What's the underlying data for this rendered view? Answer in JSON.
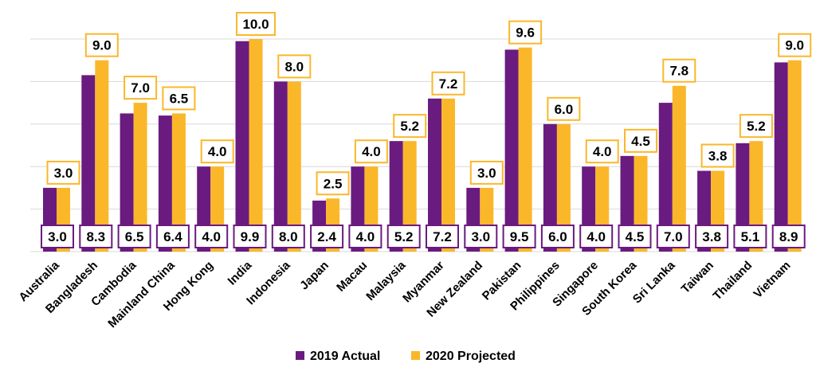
{
  "chart_data": {
    "type": "bar",
    "title": "",
    "xlabel": "",
    "ylabel": "",
    "ylim": [
      0,
      10.5
    ],
    "grid": true,
    "legend_position": "bottom",
    "categories": [
      "Australia",
      "Bangladesh",
      "Cambodia",
      "Mainland China",
      "Hong Kong",
      "India",
      "Indonesia",
      "Japan",
      "Macau",
      "Malaysia",
      "Myanmar",
      "New Zealand",
      "Pakistan",
      "Philippines",
      "Singapore",
      "South Korea",
      "Sri Lanka",
      "Taiwan",
      "Thailand",
      "Vietnam"
    ],
    "series": [
      {
        "name": "2019 Actual",
        "color": "#6a1b7f",
        "values": [
          3.0,
          8.3,
          6.5,
          6.4,
          4.0,
          9.9,
          8.0,
          2.4,
          4.0,
          5.2,
          7.2,
          3.0,
          9.5,
          6.0,
          4.0,
          4.5,
          7.0,
          3.8,
          5.1,
          8.9
        ],
        "labels": [
          "3.0",
          "8.3",
          "6.5",
          "6.4",
          "4.0",
          "9.9",
          "8.0",
          "2.4",
          "4.0",
          "5.2",
          "7.2",
          "3.0",
          "9.5",
          "6.0",
          "4.0",
          "4.5",
          "7.0",
          "3.8",
          "5.1",
          "8.9"
        ]
      },
      {
        "name": "2020 Projected",
        "color": "#fbb72a",
        "values": [
          3.0,
          9.0,
          7.0,
          6.5,
          4.0,
          10.0,
          8.0,
          2.5,
          4.0,
          5.2,
          7.2,
          3.0,
          9.6,
          6.0,
          4.0,
          4.5,
          7.8,
          3.8,
          5.2,
          9.0
        ],
        "labels": [
          "3.0",
          "9.0",
          "7.0",
          "6.5",
          "4.0",
          "10.0",
          "8.0",
          "2.5",
          "4.0",
          "5.2",
          "7.2",
          "3.0",
          "9.6",
          "6.0",
          "4.0",
          "4.5",
          "7.8",
          "3.8",
          "5.2",
          "9.0"
        ]
      }
    ]
  }
}
